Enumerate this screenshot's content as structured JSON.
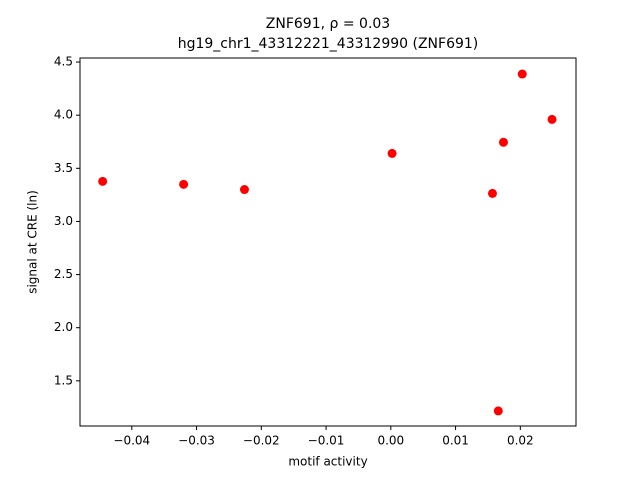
{
  "chart_data": {
    "type": "scatter",
    "title": "ZNF691, ρ = 0.03",
    "subtitle": "hg19_chr1_43312221_43312990 (ZNF691)",
    "x_label": "motif activity",
    "y_label": "signal at CRE (ln)",
    "color": "#ff0000",
    "x": [
      -0.0445,
      -0.032,
      -0.0226,
      0.0002,
      0.0157,
      0.0174,
      0.0203,
      0.0249,
      0.0166
    ],
    "values": [
      3.377,
      3.349,
      3.3,
      3.64,
      3.264,
      3.745,
      4.387,
      3.96,
      1.217
    ],
    "xlim": [
      -0.048,
      0.0286
    ],
    "ylim": [
      1.075,
      4.538
    ],
    "xticks": [
      {
        "value": -0.04,
        "label": "−0.04"
      },
      {
        "value": -0.03,
        "label": "−0.03"
      },
      {
        "value": -0.02,
        "label": "−0.02"
      },
      {
        "value": -0.01,
        "label": "−0.01"
      },
      {
        "value": 0,
        "label": "0.00"
      },
      0.01,
      0.02
    ],
    "yticks": [
      1.5,
      {
        "value": 2,
        "label": "2.0"
      },
      2.5,
      {
        "value": 3,
        "label": "3.0"
      },
      3.5,
      {
        "value": 4,
        "label": "4.0"
      },
      4.5
    ],
    "grid": false
  }
}
